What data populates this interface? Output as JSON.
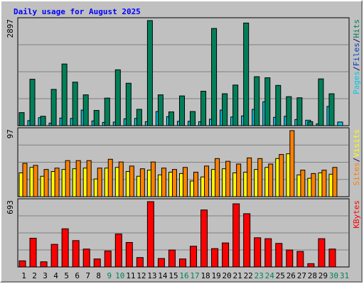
{
  "chart_data": {
    "type": "bar",
    "title": "Daily usage for August 2025",
    "categories": [
      "1",
      "2",
      "3",
      "4",
      "5",
      "6",
      "7",
      "8",
      "9",
      "10",
      "11",
      "12",
      "13",
      "14",
      "15",
      "16",
      "17",
      "18",
      "19",
      "20",
      "21",
      "22",
      "23",
      "24",
      "25",
      "26",
      "27",
      "28",
      "29",
      "30",
      "31"
    ],
    "weekend_days": [
      9,
      10,
      16,
      17,
      23,
      24,
      30,
      31
    ],
    "panels": [
      {
        "id": "hits-files-pages",
        "max_label": "2897",
        "ymax": 2897,
        "right_labels": [
          {
            "text": "Pages",
            "color": "#00c8e8"
          },
          {
            "text": "/",
            "color": "#000080"
          },
          {
            "text": "Files",
            "color": "#0040c0"
          },
          {
            "text": "/",
            "color": "#000080"
          },
          {
            "text": "Hits",
            "color": "#00805a"
          }
        ],
        "series": [
          {
            "name": "Hits",
            "color": "#00805a",
            "values": [
              360,
              1280,
              260,
              1000,
              1700,
              1200,
              850,
              420,
              760,
              1540,
              1170,
              450,
              2897,
              850,
              380,
              820,
              390,
              950,
              2680,
              880,
              1120,
              2830,
              1350,
              1320,
              1110,
              800,
              770,
              110,
              1290,
              880,
              0
            ]
          },
          {
            "name": "Files",
            "color": "#0040c0",
            "values": [
              0,
              0,
              0,
              0,
              0,
              0,
              0,
              0,
              0,
              0,
              0,
              0,
              0,
              0,
              0,
              0,
              0,
              0,
              0,
              0,
              0,
              0,
              0,
              0,
              0,
              0,
              0,
              0,
              0,
              0,
              0
            ]
          },
          {
            "name": "Pages",
            "color": "#00c8e8",
            "values": [
              140,
              220,
              70,
              210,
              200,
              430,
              130,
              90,
              100,
              190,
              200,
              110,
              390,
              250,
              120,
              120,
              110,
              180,
              430,
              240,
              270,
              450,
              660,
              230,
              260,
              170,
              150,
              50,
              530,
              100,
              0
            ]
          }
        ]
      },
      {
        "id": "visits-sites",
        "max_label": "97",
        "ymax": 97,
        "right_labels": [
          {
            "text": "Sites",
            "color": "#ff8000"
          },
          {
            "text": "/",
            "color": "#000080"
          },
          {
            "text": "Visits",
            "color": "#ffff00"
          }
        ],
        "series": [
          {
            "name": "Visits",
            "color": "#ffff00",
            "values": [
              35,
              43,
              30,
              37,
              40,
              41,
              42,
              26,
              42,
              43,
              37,
              30,
              39,
              32,
              36,
              34,
              23,
              29,
              40,
              41,
              35,
              36,
              40,
              43,
              56,
              63,
              32,
              27,
              35,
              33,
              0
            ]
          },
          {
            "name": "Sites",
            "color": "#ff8000",
            "values": [
              49,
              46,
              40,
              42,
              53,
              53,
              53,
              42,
              55,
              51,
              45,
              41,
              51,
              42,
              40,
              43,
              36,
              45,
              56,
              52,
              48,
              57,
              56,
              48,
              62,
              97,
              39,
              34,
              39,
              43,
              0
            ]
          }
        ]
      },
      {
        "id": "kbytes",
        "max_label": "693",
        "ymax": 693,
        "right_labels": [
          {
            "text": "KBytes",
            "color": "#ff0000"
          }
        ],
        "series": [
          {
            "name": "KBytes",
            "color": "#ff0000",
            "values": [
              65,
              305,
              55,
              240,
              405,
              280,
              190,
              85,
              170,
              350,
              260,
              100,
              693,
              90,
              180,
              85,
              220,
              605,
              195,
              255,
              670,
              565,
              310,
              300,
              250,
              180,
              165,
              35,
              300,
              190,
              0
            ]
          }
        ]
      }
    ]
  }
}
